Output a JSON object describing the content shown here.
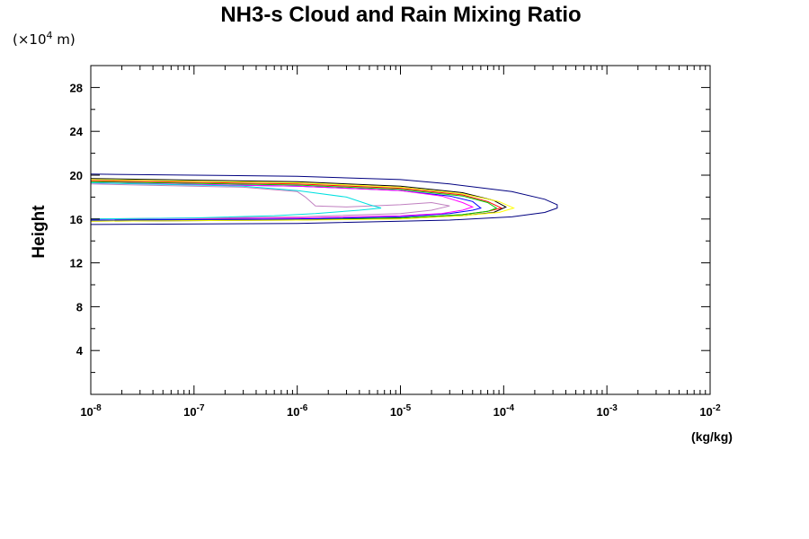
{
  "chart_data": {
    "type": "line",
    "title": "NH3-s Cloud and Rain Mixing Ratio",
    "y_unit_label": "(×10",
    "y_unit_exp": "4",
    "y_unit_suffix": " m)",
    "ylabel": "Height",
    "xunit": "(kg/kg)",
    "x_scale": "log",
    "xlim": [
      1e-08,
      0.01
    ],
    "ylim": [
      0,
      30
    ],
    "x_ticks": [
      {
        "base": "10",
        "exp": "-8"
      },
      {
        "base": "10",
        "exp": "-7"
      },
      {
        "base": "10",
        "exp": "-6"
      },
      {
        "base": "10",
        "exp": "-5"
      },
      {
        "base": "10",
        "exp": "-4"
      },
      {
        "base": "10",
        "exp": "-3"
      },
      {
        "base": "10",
        "exp": "-2"
      }
    ],
    "y_ticks": [
      "4",
      "8",
      "12",
      "16",
      "20",
      "24",
      "28"
    ],
    "y_tick_values": [
      4,
      8,
      12,
      16,
      20,
      24,
      28
    ],
    "series": [
      {
        "color": "#000080",
        "x": [
          1e-08,
          1e-06,
          1e-05,
          3e-05,
          0.00012,
          0.00025,
          0.00033,
          0.00033,
          0.00025,
          0.00012,
          3e-05,
          1e-05,
          1e-06,
          1e-08
        ],
        "y": [
          20.1,
          19.9,
          19.6,
          19.2,
          18.5,
          17.8,
          17.3,
          17.0,
          16.6,
          16.2,
          15.9,
          15.8,
          15.6,
          15.5
        ]
      },
      {
        "color": "#000000",
        "x": [
          1e-08,
          1e-06,
          1e-05,
          4e-05,
          8e-05,
          0.000105,
          8e-05,
          4e-05,
          1e-05,
          1e-06,
          1e-08
        ],
        "y": [
          19.7,
          19.4,
          19.0,
          18.4,
          17.7,
          17.1,
          16.6,
          16.3,
          16.1,
          15.9,
          15.8
        ]
      },
      {
        "color": "#ffff00",
        "x": [
          1e-08,
          1e-06,
          1e-05,
          4e-05,
          9e-05,
          0.000125,
          9e-05,
          4e-05,
          1e-05,
          1e-06,
          1e-08
        ],
        "y": [
          19.6,
          19.3,
          18.9,
          18.3,
          17.6,
          17.0,
          16.6,
          16.3,
          16.0,
          15.9,
          15.8
        ]
      },
      {
        "color": "#ff0000",
        "x": [
          1e-08,
          1e-06,
          1e-05,
          4e-05,
          7e-05,
          9.5e-05,
          7e-05,
          4e-05,
          1e-05,
          1e-06,
          1e-08
        ],
        "y": [
          19.5,
          19.2,
          18.8,
          18.2,
          17.6,
          17.0,
          16.7,
          16.4,
          16.1,
          16.0,
          15.9
        ]
      },
      {
        "color": "#00cc00",
        "x": [
          1e-08,
          1e-06,
          1e-05,
          4e-05,
          7e-05,
          8.5e-05,
          7e-05,
          4e-05,
          1e-05,
          1e-06,
          1e-08
        ],
        "y": [
          19.4,
          19.1,
          18.7,
          18.1,
          17.5,
          17.0,
          16.7,
          16.4,
          16.1,
          16.0,
          15.9
        ]
      },
      {
        "color": "#0000ff",
        "x": [
          1e-08,
          1e-06,
          1e-05,
          3e-05,
          5e-05,
          6e-05,
          5e-05,
          3e-05,
          1e-05,
          1e-06,
          1e-08
        ],
        "y": [
          19.3,
          19.0,
          18.6,
          18.1,
          17.6,
          17.0,
          16.8,
          16.5,
          16.2,
          16.0,
          15.9
        ]
      },
      {
        "color": "#ff00ff",
        "x": [
          1e-08,
          1e-06,
          1e-05,
          2.5e-05,
          4e-05,
          5e-05,
          4e-05,
          2.5e-05,
          1e-05,
          1e-06,
          1e-08
        ],
        "y": [
          19.3,
          19.0,
          18.6,
          18.1,
          17.5,
          17.1,
          16.8,
          16.5,
          16.3,
          16.1,
          16.0
        ]
      },
      {
        "color": "#c080c0",
        "x": [
          1e-08,
          3e-07,
          1e-06,
          1.2e-06,
          1.5e-06,
          3e-06,
          1e-05,
          2e-05,
          3e-05,
          2e-05,
          1e-05,
          1e-06,
          1e-08
        ],
        "y": [
          19.2,
          18.9,
          18.5,
          18.0,
          17.2,
          17.1,
          17.3,
          17.5,
          17.2,
          16.8,
          16.5,
          16.2,
          16.0
        ]
      },
      {
        "color": "#00e0e0",
        "x": [
          1e-08,
          3e-07,
          1e-06,
          3e-06,
          5e-06,
          6.5e-06,
          4e-06,
          1.5e-06,
          6e-07,
          1e-07,
          1e-08
        ],
        "y": [
          19.3,
          19.0,
          18.6,
          18.0,
          17.3,
          17.0,
          16.8,
          16.5,
          16.3,
          16.1,
          16.0
        ]
      }
    ]
  }
}
